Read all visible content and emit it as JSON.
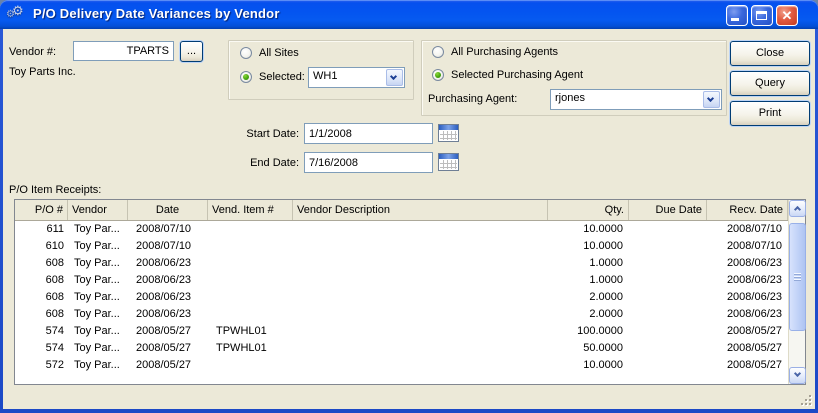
{
  "window": {
    "title": "P/O Delivery Date Variances by Vendor"
  },
  "icons": {
    "titlebar": "gears-icon",
    "minimize": "minimize-icon",
    "maximize": "maximize-icon",
    "close": "close-x-icon",
    "calendar": "calendar-icon",
    "combo_arrow": "chevron-down-icon"
  },
  "colors": {
    "dialog_bg": "#ece9d8",
    "titlebar_blue": "#0455f0",
    "close_button_red": "#d84b2f",
    "radio_selected_green": "#47a810",
    "field_border": "#7f9db9"
  },
  "vendor": {
    "label": "Vendor #:",
    "number": "TPARTS",
    "browse_label": "...",
    "name": "Toy Parts Inc."
  },
  "sites": {
    "all_label": "All Sites",
    "selected_label": "Selected:",
    "selected_option": "selected",
    "site_value": "WH1"
  },
  "agents": {
    "all_label": "All Purchasing Agents",
    "selected_label": "Selected Purchasing Agent",
    "selected_option": "selected",
    "agent_field_label": "Purchasing Agent:",
    "agent_value": "rjones"
  },
  "dates": {
    "start_label": "Start Date:",
    "start_value": "1/1/2008",
    "end_label": "End Date:",
    "end_value": "7/16/2008"
  },
  "actions": {
    "close": "Close",
    "query": "Query",
    "print": "Print"
  },
  "receipts": {
    "section_label": "P/O Item Receipts:",
    "columns": [
      "P/O #",
      "Vendor",
      "Date",
      "Vend. Item #",
      "Vendor Description",
      "Qty.",
      "Due Date",
      "Recv. Date"
    ],
    "rows": [
      [
        "611",
        "Toy Par...",
        "2008/07/10",
        "",
        "",
        "10.0000",
        "",
        "2008/07/10"
      ],
      [
        "610",
        "Toy Par...",
        "2008/07/10",
        "",
        "",
        "10.0000",
        "",
        "2008/07/10"
      ],
      [
        "608",
        "Toy Par...",
        "2008/06/23",
        "",
        "",
        "1.0000",
        "",
        "2008/06/23"
      ],
      [
        "608",
        "Toy Par...",
        "2008/06/23",
        "",
        "",
        "1.0000",
        "",
        "2008/06/23"
      ],
      [
        "608",
        "Toy Par...",
        "2008/06/23",
        "",
        "",
        "2.0000",
        "",
        "2008/06/23"
      ],
      [
        "608",
        "Toy Par...",
        "2008/06/23",
        "",
        "",
        "2.0000",
        "",
        "2008/06/23"
      ],
      [
        "574",
        "Toy Par...",
        "2008/05/27",
        "TPWHL01",
        "",
        "100.0000",
        "",
        "2008/05/27"
      ],
      [
        "574",
        "Toy Par...",
        "2008/05/27",
        "TPWHL01",
        "",
        "50.0000",
        "",
        "2008/05/27"
      ],
      [
        "572",
        "Toy Par...",
        "2008/05/27",
        "",
        "",
        "10.0000",
        "",
        "2008/05/27"
      ]
    ]
  }
}
